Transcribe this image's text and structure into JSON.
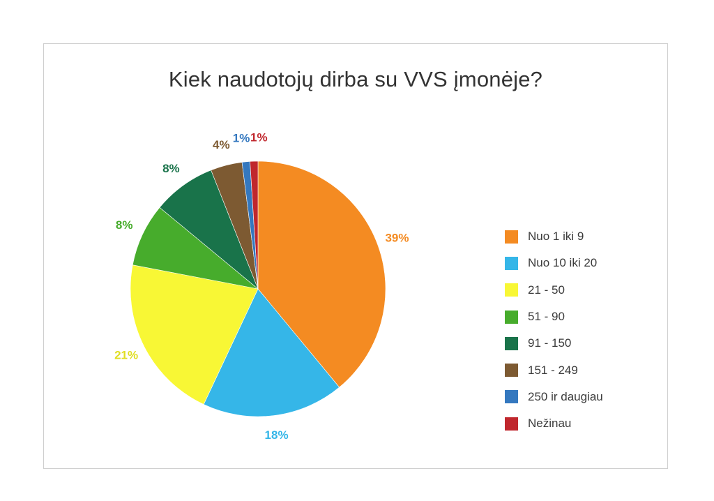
{
  "chart_data": {
    "type": "pie",
    "title": "Kiek naudotojų dirba su VVS įmonėje?",
    "legend_position": "right",
    "slices": [
      {
        "label": "Nuo 1 iki 9",
        "value": 39,
        "display": "39%",
        "color": "#F48B22"
      },
      {
        "label": "Nuo 10 iki 20",
        "value": 18,
        "display": "18%",
        "color": "#35B6E8"
      },
      {
        "label": "21 - 50",
        "value": 21,
        "display": "21%",
        "color": "#F8F735"
      },
      {
        "label": "51 - 90",
        "value": 8,
        "display": "8%",
        "color": "#47AC2C"
      },
      {
        "label": "91 - 150",
        "value": 8,
        "display": "8%",
        "color": "#19734A"
      },
      {
        "label": "151 - 249",
        "value": 4,
        "display": "4%",
        "color": "#7D5A32"
      },
      {
        "label": "250 ir daugiau",
        "value": 1,
        "display": "1%",
        "color": "#3478BF"
      },
      {
        "label": "Nežinau",
        "value": 1,
        "display": "1%",
        "color": "#C0272D"
      }
    ]
  }
}
